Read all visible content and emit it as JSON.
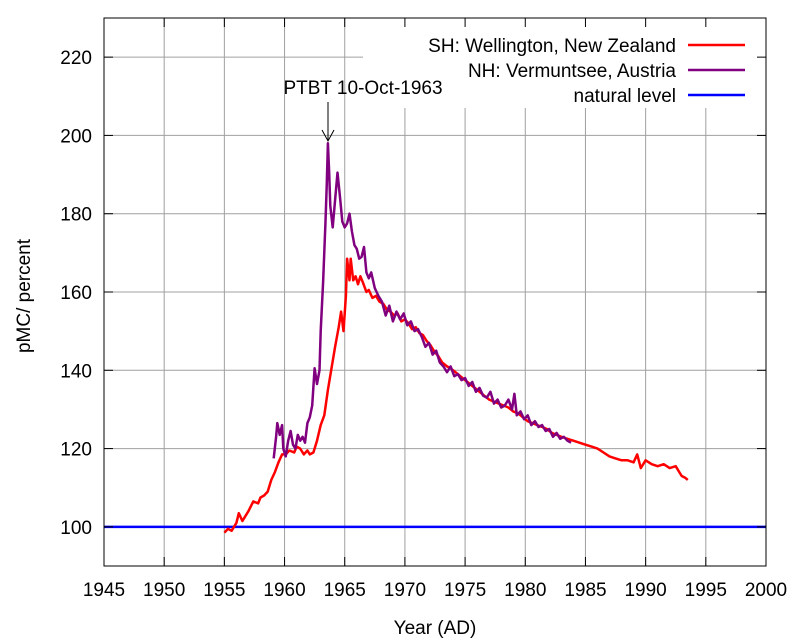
{
  "chart_data": {
    "type": "line",
    "title": "",
    "xlabel": "Year (AD)",
    "ylabel": "pMC/ percent",
    "xlim": [
      1945,
      2000
    ],
    "ylim": [
      90,
      230
    ],
    "grid": true,
    "legend_position": "top-right",
    "x_ticks": [
      "1945",
      "1950",
      "1955",
      "1960",
      "1965",
      "1970",
      "1975",
      "1980",
      "1985",
      "1990",
      "1995",
      "2000"
    ],
    "y_ticks": [
      "100",
      "120",
      "140",
      "160",
      "180",
      "200",
      "220"
    ],
    "annotation": {
      "text": "PTBT 10-Oct-1963",
      "x": 1963.78,
      "y": 198
    },
    "series": [
      {
        "name": "SH: Wellington, New Zealand",
        "color": "#ff0000",
        "points": [
          [
            1955.0,
            98.5
          ],
          [
            1955.3,
            99.5
          ],
          [
            1955.6,
            99.0
          ],
          [
            1956.0,
            101.0
          ],
          [
            1956.2,
            103.5
          ],
          [
            1956.5,
            101.5
          ],
          [
            1957.0,
            104.0
          ],
          [
            1957.4,
            106.5
          ],
          [
            1957.8,
            106.0
          ],
          [
            1958.0,
            107.5
          ],
          [
            1958.3,
            108.0
          ],
          [
            1958.6,
            109.0
          ],
          [
            1958.9,
            112.0
          ],
          [
            1959.2,
            114.0
          ],
          [
            1959.5,
            116.5
          ],
          [
            1959.8,
            118.5
          ],
          [
            1960.1,
            118.5
          ],
          [
            1960.4,
            119.5
          ],
          [
            1960.8,
            119.0
          ],
          [
            1961.0,
            120.5
          ],
          [
            1961.3,
            120.0
          ],
          [
            1961.6,
            118.5
          ],
          [
            1961.9,
            119.5
          ],
          [
            1962.1,
            118.5
          ],
          [
            1962.4,
            119.0
          ],
          [
            1962.7,
            122.0
          ],
          [
            1963.0,
            126.0
          ],
          [
            1963.3,
            128.5
          ],
          [
            1963.6,
            135.0
          ],
          [
            1963.9,
            140.5
          ],
          [
            1964.2,
            146.0
          ],
          [
            1964.5,
            151.0
          ],
          [
            1964.7,
            155.0
          ],
          [
            1964.9,
            150.0
          ],
          [
            1965.1,
            159.0
          ],
          [
            1965.2,
            168.5
          ],
          [
            1965.4,
            163.0
          ],
          [
            1965.5,
            168.5
          ],
          [
            1965.7,
            163.0
          ],
          [
            1965.9,
            164.0
          ],
          [
            1966.1,
            162.0
          ],
          [
            1966.3,
            164.0
          ],
          [
            1966.5,
            162.5
          ],
          [
            1966.8,
            160.0
          ],
          [
            1967.0,
            160.5
          ],
          [
            1967.3,
            158.5
          ],
          [
            1967.6,
            159.0
          ],
          [
            1967.9,
            157.5
          ],
          [
            1968.2,
            157.0
          ],
          [
            1968.5,
            155.5
          ],
          [
            1968.8,
            155.0
          ],
          [
            1969.1,
            154.0
          ],
          [
            1969.4,
            154.5
          ],
          [
            1969.7,
            152.5
          ],
          [
            1970.0,
            153.0
          ],
          [
            1970.3,
            152.0
          ],
          [
            1970.6,
            150.5
          ],
          [
            1970.9,
            151.0
          ],
          [
            1971.2,
            149.5
          ],
          [
            1971.5,
            149.0
          ],
          [
            1971.8,
            147.5
          ],
          [
            1972.1,
            146.5
          ],
          [
            1972.4,
            145.0
          ],
          [
            1972.8,
            143.5
          ],
          [
            1973.1,
            142.0
          ],
          [
            1973.5,
            141.0
          ],
          [
            1973.8,
            140.5
          ],
          [
            1974.2,
            139.5
          ],
          [
            1974.6,
            138.5
          ],
          [
            1975.0,
            137.5
          ],
          [
            1975.4,
            136.5
          ],
          [
            1975.8,
            135.5
          ],
          [
            1976.2,
            134.5
          ],
          [
            1976.6,
            133.5
          ],
          [
            1977.0,
            132.5
          ],
          [
            1977.4,
            132.0
          ],
          [
            1977.8,
            131.5
          ],
          [
            1978.2,
            131.0
          ],
          [
            1978.6,
            130.5
          ],
          [
            1979.0,
            129.5
          ],
          [
            1979.4,
            129.0
          ],
          [
            1979.8,
            128.0
          ],
          [
            1980.2,
            127.0
          ],
          [
            1980.6,
            126.5
          ],
          [
            1981.0,
            126.0
          ],
          [
            1981.4,
            125.5
          ],
          [
            1981.8,
            125.0
          ],
          [
            1982.2,
            124.0
          ],
          [
            1982.6,
            123.5
          ],
          [
            1983.0,
            123.0
          ],
          [
            1983.5,
            122.5
          ],
          [
            1984.0,
            122.0
          ],
          [
            1984.5,
            121.5
          ],
          [
            1985.0,
            121.0
          ],
          [
            1985.5,
            120.5
          ],
          [
            1986.0,
            120.0
          ],
          [
            1986.5,
            119.0
          ],
          [
            1987.0,
            118.0
          ],
          [
            1987.5,
            117.5
          ],
          [
            1988.0,
            117.0
          ],
          [
            1988.5,
            117.0
          ],
          [
            1989.0,
            116.5
          ],
          [
            1989.3,
            118.5
          ],
          [
            1989.6,
            115.0
          ],
          [
            1990.0,
            117.0
          ],
          [
            1990.5,
            116.0
          ],
          [
            1991.0,
            115.5
          ],
          [
            1991.5,
            116.0
          ],
          [
            1992.0,
            115.0
          ],
          [
            1992.5,
            115.5
          ],
          [
            1992.8,
            114.0
          ],
          [
            1993.0,
            113.0
          ],
          [
            1993.3,
            112.5
          ],
          [
            1993.5,
            112.0
          ]
        ]
      },
      {
        "name": "NH: Vermuntsee, Austria",
        "color": "#800080",
        "points": [
          [
            1959.1,
            117.5
          ],
          [
            1959.3,
            123.0
          ],
          [
            1959.4,
            126.5
          ],
          [
            1959.6,
            123.5
          ],
          [
            1959.8,
            126.0
          ],
          [
            1959.9,
            120.0
          ],
          [
            1960.1,
            118.0
          ],
          [
            1960.3,
            122.0
          ],
          [
            1960.5,
            124.5
          ],
          [
            1960.7,
            121.0
          ],
          [
            1960.9,
            120.0
          ],
          [
            1961.1,
            123.5
          ],
          [
            1961.3,
            122.0
          ],
          [
            1961.5,
            123.0
          ],
          [
            1961.7,
            121.5
          ],
          [
            1961.9,
            126.5
          ],
          [
            1962.1,
            128.0
          ],
          [
            1962.3,
            131.0
          ],
          [
            1962.5,
            140.5
          ],
          [
            1962.7,
            136.5
          ],
          [
            1962.9,
            140.0
          ],
          [
            1963.0,
            150.0
          ],
          [
            1963.2,
            162.5
          ],
          [
            1963.4,
            178.0
          ],
          [
            1963.5,
            187.0
          ],
          [
            1963.6,
            198.0
          ],
          [
            1963.7,
            191.0
          ],
          [
            1963.8,
            182.0
          ],
          [
            1964.0,
            176.5
          ],
          [
            1964.2,
            183.5
          ],
          [
            1964.4,
            190.5
          ],
          [
            1964.6,
            184.5
          ],
          [
            1964.8,
            178.0
          ],
          [
            1965.0,
            176.5
          ],
          [
            1965.2,
            177.5
          ],
          [
            1965.4,
            180.0
          ],
          [
            1965.6,
            175.5
          ],
          [
            1965.8,
            172.0
          ],
          [
            1966.0,
            171.0
          ],
          [
            1966.2,
            168.5
          ],
          [
            1966.4,
            169.0
          ],
          [
            1966.6,
            171.5
          ],
          [
            1966.8,
            165.0
          ],
          [
            1967.0,
            163.5
          ],
          [
            1967.2,
            165.0
          ],
          [
            1967.5,
            161.0
          ],
          [
            1967.8,
            159.0
          ],
          [
            1968.1,
            157.5
          ],
          [
            1968.4,
            154.0
          ],
          [
            1968.7,
            156.5
          ],
          [
            1969.0,
            152.5
          ],
          [
            1969.3,
            155.0
          ],
          [
            1969.6,
            153.0
          ],
          [
            1969.9,
            154.5
          ],
          [
            1970.2,
            151.5
          ],
          [
            1970.5,
            152.5
          ],
          [
            1970.8,
            150.0
          ],
          [
            1971.1,
            150.5
          ],
          [
            1971.4,
            148.5
          ],
          [
            1971.7,
            146.0
          ],
          [
            1972.0,
            147.0
          ],
          [
            1972.3,
            144.0
          ],
          [
            1972.6,
            145.0
          ],
          [
            1972.9,
            142.0
          ],
          [
            1973.2,
            141.0
          ],
          [
            1973.5,
            139.5
          ],
          [
            1973.8,
            141.0
          ],
          [
            1974.1,
            138.5
          ],
          [
            1974.4,
            139.0
          ],
          [
            1974.7,
            137.5
          ],
          [
            1975.0,
            138.0
          ],
          [
            1975.3,
            136.0
          ],
          [
            1975.6,
            137.0
          ],
          [
            1975.9,
            134.5
          ],
          [
            1976.2,
            135.5
          ],
          [
            1976.5,
            133.5
          ],
          [
            1976.8,
            133.0
          ],
          [
            1977.1,
            134.5
          ],
          [
            1977.4,
            131.5
          ],
          [
            1977.7,
            132.5
          ],
          [
            1978.0,
            130.5
          ],
          [
            1978.3,
            131.0
          ],
          [
            1978.6,
            132.5
          ],
          [
            1978.9,
            130.0
          ],
          [
            1979.1,
            134.0
          ],
          [
            1979.3,
            128.5
          ],
          [
            1979.6,
            129.5
          ],
          [
            1979.9,
            127.5
          ],
          [
            1980.2,
            128.5
          ],
          [
            1980.5,
            126.0
          ],
          [
            1980.8,
            127.0
          ],
          [
            1981.1,
            125.5
          ],
          [
            1981.4,
            126.0
          ],
          [
            1981.7,
            124.5
          ],
          [
            1982.0,
            125.0
          ],
          [
            1982.3,
            123.0
          ],
          [
            1982.6,
            124.0
          ],
          [
            1982.9,
            122.5
          ],
          [
            1983.2,
            123.0
          ],
          [
            1983.5,
            122.0
          ],
          [
            1983.8,
            121.5
          ]
        ]
      },
      {
        "name": "natural level",
        "color": "#0000ff",
        "points": [
          [
            1945,
            100
          ],
          [
            2000,
            100
          ]
        ]
      }
    ]
  }
}
